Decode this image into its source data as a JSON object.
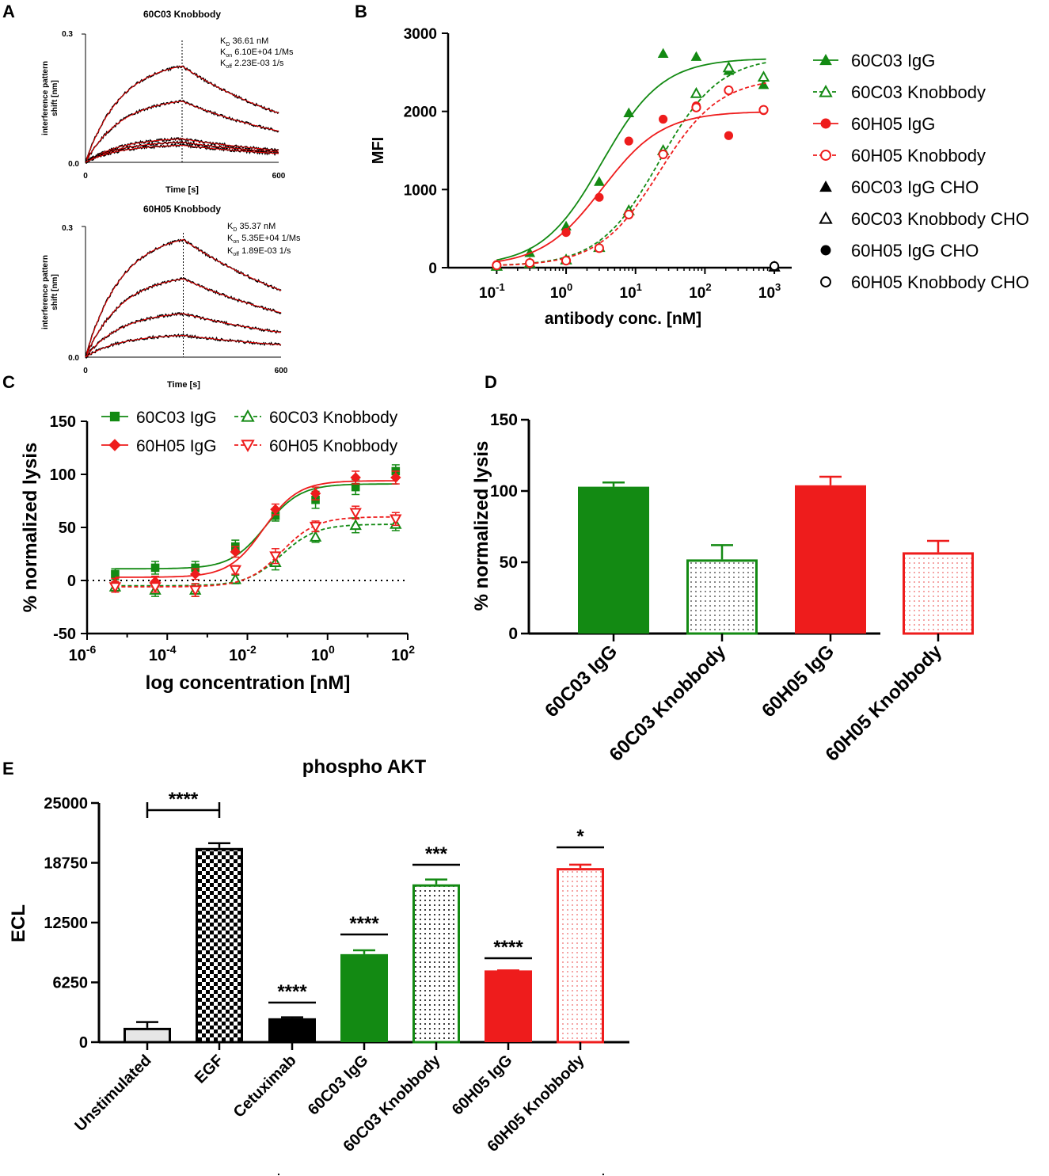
{
  "panels": {
    "A": "A",
    "B": "B",
    "C": "C",
    "D": "D",
    "E": "E",
    "legendB": [
      "60C03 IgG",
      "60C03 Knobbody",
      "60H05 IgG",
      "60H05 Knobbody",
      "60C03 IgG CHO",
      "60C03 Knobbody CHO",
      "60H05 IgG CHO",
      "60H05 Knobbody CHO"
    ],
    "legendC": [
      "60C03 IgG",
      "60H05 IgG",
      "60C03 Knobbody",
      "60H05 Knobbody"
    ]
  },
  "chart_data": [
    {
      "panel": "A-top",
      "type": "line",
      "title": "60C03 Knobbody",
      "xlabel": "Time [s]",
      "ylabel": "interference pattern shift [nm]",
      "xticks": [
        "0",
        "600"
      ],
      "yticks": [
        "0.0",
        "0.3"
      ],
      "xlim": [
        0,
        600
      ],
      "ylim": [
        0,
        0.3
      ],
      "dissociation_start": 300,
      "annotations": {
        "kd": "36.61 nM",
        "kon": "6.10E+04 1/Ms",
        "koff": "2.23E-03 1/s"
      },
      "curve_peaks": [
        0.225,
        0.143,
        0.055,
        0.047,
        0.04
      ],
      "koff_value": 0.00223
    },
    {
      "panel": "A-bottom",
      "type": "line",
      "title": "60H05 Knobbody",
      "xlabel": "Time [s]",
      "ylabel": "interference pattern shift [nm]",
      "xticks": [
        "0",
        "600"
      ],
      "yticks": [
        "0.0",
        "0.3"
      ],
      "xlim": [
        0,
        600
      ],
      "ylim": [
        0,
        0.3
      ],
      "dissociation_start": 300,
      "annotations": {
        "kd": "35.37 nM",
        "kon": "5.35E+04 1/Ms",
        "koff": "1.89E-03 1/s"
      },
      "curve_peaks": [
        0.27,
        0.18,
        0.1,
        0.05
      ],
      "koff_value": 0.00189
    },
    {
      "panel": "B",
      "type": "scatter",
      "xlabel": "antibody conc. [nM]",
      "ylabel": "MFI",
      "yticks": [
        "0",
        "1000",
        "2000",
        "3000"
      ],
      "xticks": [
        "-1",
        "0",
        "1",
        "2",
        "3"
      ],
      "xlim_log10": [
        -1.7,
        3.25
      ],
      "ylim": [
        0,
        3000
      ],
      "series": [
        {
          "name": "60C03 IgG",
          "marker": "triangle-filled",
          "color": "#138a13",
          "dashed": false,
          "x": [
            0.1,
            0.3,
            1,
            3,
            8,
            25,
            75,
            220,
            700
          ],
          "y": [
            30,
            190,
            530,
            1100,
            1980,
            2740,
            2700,
            2520,
            2340
          ],
          "fit": {
            "bottom": 20,
            "top": 2680,
            "ec50": 3.3,
            "hill": 1
          }
        },
        {
          "name": "60C03 Knobbody",
          "marker": "triangle-open",
          "color": "#138a13",
          "dashed": true,
          "x": [
            0.1,
            0.3,
            1,
            3,
            8,
            25,
            75,
            220,
            700
          ],
          "y": [
            20,
            55,
            100,
            260,
            730,
            1500,
            2230,
            2560,
            2440
          ],
          "fit": {
            "bottom": 20,
            "top": 2700,
            "ec50": 22,
            "hill": 1
          }
        },
        {
          "name": "60H05 IgG",
          "marker": "circle-filled",
          "color": "#ee1c1c",
          "dashed": false,
          "x": [
            0.1,
            1,
            3,
            8,
            25,
            75,
            220,
            700
          ],
          "y": [
            40,
            450,
            900,
            1620,
            1900,
            2070,
            1690,
            2010
          ],
          "fit": {
            "bottom": 20,
            "top": 2000,
            "ec50": 3.3,
            "hill": 1
          }
        },
        {
          "name": "60H05 Knobbody",
          "marker": "circle-open",
          "color": "#ee1c1c",
          "dashed": true,
          "x": [
            0.1,
            0.3,
            1,
            3,
            8,
            25,
            75,
            220,
            700
          ],
          "y": [
            30,
            60,
            90,
            250,
            680,
            1450,
            2050,
            2270,
            2020
          ],
          "fit": {
            "bottom": 20,
            "top": 2430,
            "ec50": 22,
            "hill": 1
          }
        },
        {
          "name": "60C03 IgG CHO",
          "marker": "triangle-filled",
          "color": "#000000",
          "x": [
            1000
          ],
          "y": [
            10
          ]
        },
        {
          "name": "60C03 Knobbody CHO",
          "marker": "triangle-open",
          "color": "#000000",
          "x": [
            1000
          ],
          "y": [
            10
          ]
        },
        {
          "name": "60H05 IgG CHO",
          "marker": "circle-filled",
          "color": "#000000",
          "x": [
            1000
          ],
          "y": [
            20
          ]
        },
        {
          "name": "60H05 Knobbody CHO",
          "marker": "circle-open",
          "color": "#000000",
          "x": [
            1000
          ],
          "y": [
            20
          ]
        }
      ]
    },
    {
      "panel": "C",
      "type": "scatter",
      "xlabel": "log concentration [nM]",
      "ylabel": "% normalized lysis",
      "yticks": [
        "-50",
        "0",
        "50",
        "100",
        "150"
      ],
      "xticks": [
        "-6",
        "-4",
        "-2",
        "0",
        "2"
      ],
      "xlim_log10": [
        -6,
        2
      ],
      "ylim": [
        -50,
        150
      ],
      "series": [
        {
          "name": "60C03 IgG",
          "marker": "square-filled",
          "color": "#138a13",
          "dashed": false,
          "x_log10": [
            -5.3,
            -4.3,
            -3.3,
            -2.3,
            -1.3,
            -0.3,
            0.7,
            1.7
          ],
          "y": [
            6,
            12,
            12,
            32,
            61,
            76,
            88,
            103
          ],
          "err": [
            5,
            6,
            6,
            6,
            5,
            8,
            7,
            6
          ],
          "fit": {
            "bottom": 11,
            "top": 91,
            "logec50": -1.55,
            "hill": 1
          }
        },
        {
          "name": "60H05 IgG",
          "marker": "diamond-filled",
          "color": "#ee1c1c",
          "dashed": false,
          "x_log10": [
            -5.3,
            -4.3,
            -3.3,
            -2.3,
            -1.3,
            -0.3,
            0.7,
            1.7
          ],
          "y": [
            -3,
            -1,
            6,
            27,
            67,
            82,
            97,
            97
          ],
          "err": [
            5,
            5,
            5,
            5,
            5,
            6,
            6,
            6
          ],
          "fit": {
            "bottom": 3,
            "top": 94,
            "logec50": -1.6,
            "hill": 1
          }
        },
        {
          "name": "60C03 Knobbody",
          "marker": "triangle-open",
          "color": "#138a13",
          "dashed": true,
          "x_log10": [
            -5.3,
            -4.3,
            -3.3,
            -2.3,
            -1.3,
            -0.3,
            0.7,
            1.7
          ],
          "y": [
            -6,
            -9,
            -9,
            1,
            17,
            41,
            52,
            53
          ],
          "err": [
            5,
            6,
            6,
            4,
            7,
            5,
            7,
            6
          ],
          "fit": {
            "bottom": -5,
            "top": 53,
            "logec50": -1.15,
            "hill": 1
          }
        },
        {
          "name": "60H05 Knobbody",
          "marker": "triangle-down-open",
          "color": "#ee1c1c",
          "dashed": true,
          "x_log10": [
            -5.3,
            -4.3,
            -3.3,
            -2.3,
            -1.3,
            -0.3,
            0.7,
            1.7
          ],
          "y": [
            -6,
            -6,
            -9,
            10,
            23,
            51,
            64,
            58
          ],
          "err": [
            5,
            5,
            6,
            4,
            7,
            5,
            6,
            6
          ],
          "fit": {
            "bottom": -6,
            "top": 60,
            "logec50": -1.15,
            "hill": 1
          }
        }
      ]
    },
    {
      "panel": "D",
      "type": "bar",
      "ylabel": "% normalized lysis",
      "yticks": [
        "0",
        "50",
        "100",
        "150"
      ],
      "ylim": [
        0,
        150
      ],
      "categories": [
        "60C03 IgG",
        "60C03 Knobbody",
        "60H05 IgG",
        "60H05 Knobbody"
      ],
      "values": [
        103,
        52,
        104,
        57
      ],
      "errors": [
        3,
        10,
        6,
        8
      ],
      "colors": [
        "#138a13",
        "#138a13",
        "#ee1c1c",
        "#ee1c1c"
      ],
      "fills": [
        "solid",
        "dots",
        "solid",
        "dots"
      ]
    },
    {
      "panel": "E",
      "type": "bar",
      "title": "phospho AKT",
      "ylabel": "ECL",
      "yticks": [
        "0",
        "6250",
        "12500",
        "18750",
        "25000"
      ],
      "ylim": [
        0,
        25000
      ],
      "categories": [
        "Unstimulated",
        "EGF",
        "Cetuximab",
        "60C03 IgG",
        "60C03 Knobbody",
        "60H05 IgG",
        "60H05 Knobbody"
      ],
      "values": [
        1500,
        20300,
        2500,
        9200,
        16500,
        7500,
        18200
      ],
      "errors": [
        600,
        500,
        100,
        400,
        500,
        0,
        350
      ],
      "colors": [
        "#000000",
        "#000000",
        "#000000",
        "#138a13",
        "#138a13",
        "#ee1c1c",
        "#ee1c1c"
      ],
      "fills": [
        "light",
        "checker",
        "solid",
        "solid",
        "dots",
        "solid",
        "dots"
      ],
      "significance": [
        "",
        "****",
        "****",
        "****",
        "***",
        "****",
        "*"
      ]
    }
  ]
}
